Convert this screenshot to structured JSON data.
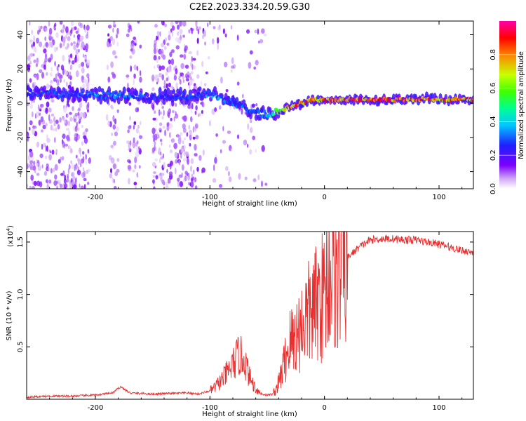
{
  "chart_data": [
    {
      "type": "heatmap",
      "title": "C2E2.2023.334.20.59.G30",
      "xlabel": "Height of straight line (km)",
      "ylabel": "Frequency (Hz)",
      "xlim": [
        -260,
        130
      ],
      "ylim": [
        -50,
        48
      ],
      "x_ticks": [
        -200,
        -100,
        0,
        100
      ],
      "y_ticks": [
        -40,
        -20,
        0,
        20,
        40
      ],
      "colorbar": {
        "label": "Normalized spectral amplitude",
        "range": [
          0,
          1
        ],
        "ticks": [
          0.0,
          0.2,
          0.4,
          0.6,
          0.8
        ],
        "tick_labels": [
          "0.0",
          "0.2",
          "0.4",
          "0.6",
          "0.8"
        ],
        "colors": [
          "#ffffff",
          "#c8a0f0",
          "#7b00ff",
          "#1f1fff",
          "#00c8ff",
          "#00ff80",
          "#40ff00",
          "#c8ff00",
          "#ff8000",
          "#ff0000",
          "#ff00a0"
        ]
      },
      "ridge": {
        "name": "Dominant frequency ridge",
        "x": [
          -260,
          -230,
          -200,
          -170,
          -150,
          -120,
          -100,
          -80,
          -60,
          -50,
          -40,
          -30,
          -20,
          -10,
          0,
          20,
          50,
          80,
          90,
          100,
          130
        ],
        "y": [
          6,
          5,
          5,
          4,
          4,
          4,
          6,
          0,
          -5,
          -7,
          -5,
          -2,
          0,
          2,
          2,
          2,
          2,
          2,
          3,
          2,
          2
        ],
        "amplitude": [
          0.3,
          0.3,
          0.35,
          0.35,
          0.3,
          0.3,
          0.4,
          0.35,
          0.3,
          0.4,
          0.7,
          0.9,
          0.9,
          0.85,
          0.9,
          0.9,
          0.95,
          0.95,
          0.9,
          0.9,
          0.85
        ]
      }
    },
    {
      "type": "line",
      "xlabel": "Height of straight line (km)",
      "ylabel": "SNR (10 * v/v)",
      "ylabel_multiplier": "(x10",
      "ylabel_multiplier_exp": "4",
      "ylabel_multiplier_close": ")",
      "xlim": [
        -260,
        130
      ],
      "ylim": [
        0,
        1.6
      ],
      "x_ticks": [
        -200,
        -100,
        0,
        100
      ],
      "y_ticks": [
        0.5,
        1.0,
        1.5
      ],
      "y_tick_labels": [
        "0.5",
        "1.0",
        "1.5"
      ],
      "line_color": "#e83030",
      "series": [
        {
          "name": "SNR",
          "x": [
            -260,
            -240,
            -220,
            -200,
            -185,
            -178,
            -170,
            -150,
            -120,
            -110,
            -100,
            -95,
            -90,
            -85,
            -80,
            -75,
            -70,
            -65,
            -60,
            -55,
            -50,
            -45,
            -40,
            -35,
            -30,
            -25,
            -20,
            -15,
            -10,
            -5,
            0,
            5,
            10,
            15,
            20,
            30,
            40,
            50,
            60,
            70,
            80,
            90,
            100,
            110,
            120,
            130
          ],
          "y": [
            0.02,
            0.03,
            0.03,
            0.04,
            0.06,
            0.12,
            0.06,
            0.05,
            0.06,
            0.05,
            0.08,
            0.12,
            0.18,
            0.25,
            0.33,
            0.42,
            0.38,
            0.2,
            0.1,
            0.05,
            0.04,
            0.05,
            0.15,
            0.35,
            0.55,
            0.6,
            0.7,
            0.8,
            0.85,
            0.95,
            1.0,
            1.25,
            1.15,
            1.3,
            1.35,
            1.45,
            1.52,
            1.53,
            1.53,
            1.52,
            1.52,
            1.5,
            1.48,
            1.45,
            1.42,
            1.4
          ]
        }
      ]
    }
  ]
}
